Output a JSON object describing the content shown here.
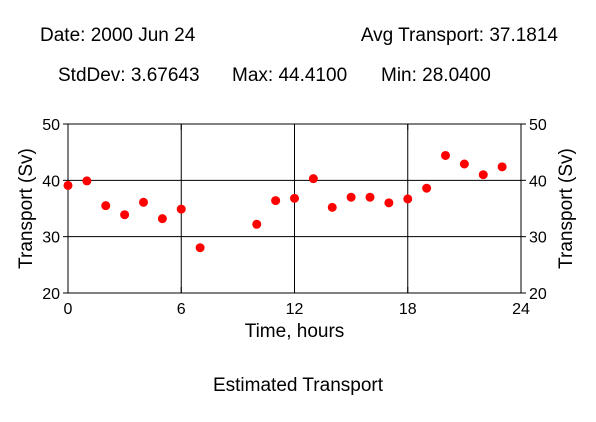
{
  "header": {
    "date": "Date: 2000 Jun 24",
    "avg": "Avg Transport: 37.1814",
    "stddev": "StdDev: 3.67643",
    "max": "Max: 44.4100",
    "min": "Min: 28.0400"
  },
  "caption": "Estimated Transport",
  "colors": {
    "marker": "#ff0000",
    "axis": "#000000",
    "grid": "#000000",
    "background": "#ffffff"
  },
  "chart_data": {
    "type": "scatter",
    "title": "",
    "xlabel": "Time, hours",
    "ylabel": "Transport (Sv)",
    "ylabel_right": "Transport (Sv)",
    "xlim": [
      0,
      24
    ],
    "ylim": [
      20,
      50
    ],
    "xticks": [
      0,
      6,
      12,
      18,
      24
    ],
    "yticks": [
      20,
      30,
      40,
      50
    ],
    "xtick_labels": [
      "0",
      "6",
      "12",
      "18",
      "24"
    ],
    "ytick_labels": [
      "20",
      "30",
      "40",
      "50"
    ],
    "grid": true,
    "x": [
      0,
      1,
      2,
      3,
      4,
      5,
      6,
      7,
      10,
      11,
      12,
      13,
      14,
      15,
      16,
      17,
      18,
      19,
      20,
      21,
      22,
      23
    ],
    "y": [
      39.1,
      39.9,
      35.5,
      33.9,
      36.1,
      33.2,
      34.9,
      28.04,
      32.2,
      36.4,
      36.8,
      40.3,
      35.2,
      37.0,
      37.0,
      36.0,
      36.7,
      38.6,
      44.41,
      42.9,
      41.0,
      42.4
    ]
  }
}
